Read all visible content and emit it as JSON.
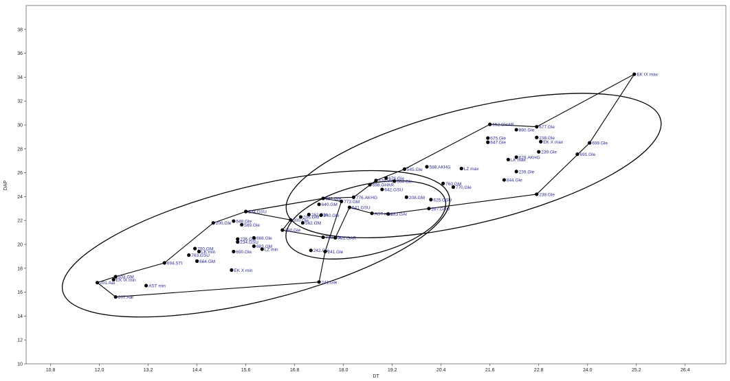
{
  "chart_data": {
    "type": "scatter",
    "xlabel": "DT",
    "ylabel": "DAP",
    "xlim": [
      10.2,
      27.4
    ],
    "ylim": [
      10,
      40
    ],
    "x_ticks": [
      10.8,
      12.0,
      13.2,
      14.4,
      15.6,
      16.8,
      18.0,
      19.2,
      20.4,
      21.6,
      22.8,
      24.0,
      25.2,
      26.4
    ],
    "y_ticks": [
      10,
      12,
      14,
      16,
      18,
      20,
      22,
      24,
      26,
      28,
      30,
      32,
      34,
      36,
      38
    ],
    "grid": false,
    "colors": {
      "point": "#000000",
      "label": "#2a2a9a",
      "hull": "#000000"
    },
    "points": [
      {
        "label": "EK IX max",
        "x": 25.15,
        "y": 34.25
      },
      {
        "label": "652.GHAR",
        "x": 21.6,
        "y": 30.05
      },
      {
        "label": "677.Gle",
        "x": 22.75,
        "y": 29.85
      },
      {
        "label": "890.Gle",
        "x": 22.25,
        "y": 29.6
      },
      {
        "label": "238.Gle",
        "x": 22.75,
        "y": 28.95
      },
      {
        "label": "EK X max",
        "x": 22.85,
        "y": 28.6
      },
      {
        "label": "699.Gle",
        "x": 24.05,
        "y": 28.5
      },
      {
        "label": "675.Gle",
        "x": 21.55,
        "y": 28.9
      },
      {
        "label": "647.Gle",
        "x": 21.55,
        "y": 28.55
      },
      {
        "label": "239.Gle",
        "x": 22.8,
        "y": 27.75
      },
      {
        "label": "691.Gle",
        "x": 23.75,
        "y": 27.55
      },
      {
        "label": "628.AKHG",
        "x": 22.25,
        "y": 27.3
      },
      {
        "label": "LK max",
        "x": 22.05,
        "y": 27.1
      },
      {
        "label": "588.AKHG",
        "x": 20.05,
        "y": 26.5
      },
      {
        "label": "LZ max",
        "x": 20.9,
        "y": 26.35
      },
      {
        "label": "545.Gle",
        "x": 19.5,
        "y": 26.3
      },
      {
        "label": "239.Gle",
        "x": 22.25,
        "y": 26.1
      },
      {
        "label": "676.Gle",
        "x": 19.05,
        "y": 25.55
      },
      {
        "label": "670.Vie",
        "x": 18.8,
        "y": 25.35
      },
      {
        "label": "664.Gle",
        "x": 19.25,
        "y": 25.3
      },
      {
        "label": "698.GHAR",
        "x": 18.65,
        "y": 25.0
      },
      {
        "label": "844.Gle",
        "x": 21.95,
        "y": 25.4
      },
      {
        "label": "760.GM",
        "x": 20.45,
        "y": 25.1
      },
      {
        "label": "770.Gle",
        "x": 20.7,
        "y": 24.8
      },
      {
        "label": "642.GSU",
        "x": 18.95,
        "y": 24.6
      },
      {
        "label": "238.Gle",
        "x": 22.75,
        "y": 24.2
      },
      {
        "label": "776.AKHG",
        "x": 18.25,
        "y": 23.95
      },
      {
        "label": "208.GM",
        "x": 19.55,
        "y": 23.95
      },
      {
        "label": "625.GSU",
        "x": 20.15,
        "y": 23.75
      },
      {
        "label": "681.Gle",
        "x": 17.5,
        "y": 23.85
      },
      {
        "label": "773.GM",
        "x": 17.95,
        "y": 23.6
      },
      {
        "label": "640.GM",
        "x": 17.4,
        "y": 23.35
      },
      {
        "label": "541.GSU",
        "x": 18.15,
        "y": 23.1
      },
      {
        "label": "287.GSU",
        "x": 20.1,
        "y": 23.0
      },
      {
        "label": "AST max",
        "x": 18.7,
        "y": 22.6
      },
      {
        "label": "283.GAr",
        "x": 19.1,
        "y": 22.55
      },
      {
        "label": "234.GSU",
        "x": 15.6,
        "y": 22.75
      },
      {
        "label": "262.GM",
        "x": 17.15,
        "y": 22.5
      },
      {
        "label": "240.Gle",
        "x": 17.45,
        "y": 22.45
      },
      {
        "label": "200.Gle",
        "x": 16.7,
        "y": 22.05
      },
      {
        "label": "206.GM",
        "x": 16.95,
        "y": 22.3
      },
      {
        "label": "648.Gle",
        "x": 15.3,
        "y": 21.95
      },
      {
        "label": "200.Gle",
        "x": 14.8,
        "y": 21.8
      },
      {
        "label": "589.Gle",
        "x": 15.5,
        "y": 21.65
      },
      {
        "label": "562.GM",
        "x": 17.0,
        "y": 21.8
      },
      {
        "label": "230.Gle",
        "x": 16.5,
        "y": 21.2
      },
      {
        "label": "236.GM",
        "x": 15.4,
        "y": 20.45
      },
      {
        "label": "234.GSU",
        "x": 15.4,
        "y": 20.2
      },
      {
        "label": "668.Gle",
        "x": 15.8,
        "y": 20.55
      },
      {
        "label": "710.Gle",
        "x": 17.5,
        "y": 20.6
      },
      {
        "label": "795.GAR",
        "x": 17.8,
        "y": 20.55
      },
      {
        "label": "683.GM",
        "x": 15.8,
        "y": 19.85
      },
      {
        "label": "LZ min",
        "x": 16.0,
        "y": 19.6
      },
      {
        "label": "242.Gle",
        "x": 17.2,
        "y": 19.5
      },
      {
        "label": "241.Gle",
        "x": 17.55,
        "y": 19.4
      },
      {
        "label": "700.GM",
        "x": 14.35,
        "y": 19.65
      },
      {
        "label": "LK min",
        "x": 14.45,
        "y": 19.4
      },
      {
        "label": "690.Gle",
        "x": 15.3,
        "y": 19.4
      },
      {
        "label": "763.GSU",
        "x": 14.2,
        "y": 19.1
      },
      {
        "label": "664.GM",
        "x": 14.4,
        "y": 18.6
      },
      {
        "label": "694.STI",
        "x": 13.6,
        "y": 18.45
      },
      {
        "label": "EK X min",
        "x": 15.25,
        "y": 17.85
      },
      {
        "label": "503.GM",
        "x": 12.4,
        "y": 17.3
      },
      {
        "label": "EK IX min",
        "x": 12.35,
        "y": 17.05
      },
      {
        "label": "201.Aai",
        "x": 11.95,
        "y": 16.8
      },
      {
        "label": "241.Gle",
        "x": 17.4,
        "y": 16.85
      },
      {
        "label": "AST min",
        "x": 13.15,
        "y": 16.55
      },
      {
        "label": "207.Aar",
        "x": 12.4,
        "y": 15.6
      }
    ],
    "hulls": [
      {
        "vertices": [
          [
            11.95,
            16.8
          ],
          [
            12.4,
            17.3
          ],
          [
            13.6,
            18.45
          ],
          [
            14.8,
            21.8
          ],
          [
            15.6,
            22.75
          ],
          [
            17.5,
            23.85
          ],
          [
            17.95,
            23.6
          ],
          [
            17.55,
            19.4
          ],
          [
            17.4,
            16.85
          ],
          [
            12.4,
            15.6
          ]
        ]
      },
      {
        "vertices": [
          [
            15.6,
            22.75
          ],
          [
            17.5,
            23.85
          ],
          [
            18.25,
            23.95
          ],
          [
            18.8,
            25.35
          ],
          [
            19.5,
            26.3
          ],
          [
            21.6,
            30.05
          ],
          [
            22.75,
            29.85
          ],
          [
            25.15,
            34.25
          ],
          [
            24.05,
            28.5
          ],
          [
            22.75,
            24.2
          ],
          [
            20.1,
            23.0
          ],
          [
            19.1,
            22.55
          ],
          [
            18.7,
            22.6
          ],
          [
            18.15,
            23.1
          ],
          [
            17.8,
            20.55
          ],
          [
            17.5,
            20.6
          ],
          [
            16.5,
            21.2
          ],
          [
            16.7,
            22.05
          ]
        ]
      }
    ],
    "ellipses": [
      {
        "cx": 15.85,
        "cy": 20.05,
        "rx": 6.2,
        "ry": 2.3,
        "angle_deg": 40
      },
      {
        "cx": 21.2,
        "cy": 26.6,
        "rx": 6.0,
        "ry": 2.3,
        "angle_deg": 40
      },
      {
        "cx": 18.55,
        "cy": 22.05,
        "rx": 2.55,
        "ry": 1.4,
        "angle_deg": 40
      }
    ]
  }
}
